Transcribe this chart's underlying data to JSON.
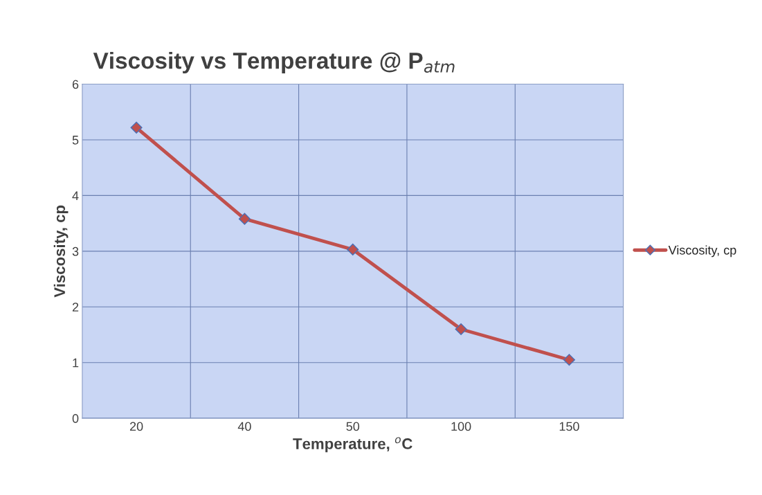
{
  "chart_data": {
    "type": "line",
    "title": "Viscosity vs Temperature @ P$_{atm}$",
    "xlabel": "Temperature, $^{o}$C",
    "ylabel": "Viscosity, cp",
    "categories": [
      "20",
      "40",
      "50",
      "100",
      "150"
    ],
    "series": [
      {
        "name": "Viscosity, cp",
        "color": "#c0504d",
        "values": [
          5.22,
          3.58,
          3.03,
          1.6,
          1.05
        ]
      }
    ],
    "ylim": [
      0,
      6
    ],
    "yticks": [
      0,
      1,
      2,
      3,
      4,
      5,
      6
    ],
    "grid": true,
    "legend": "right",
    "marker": "diamond",
    "line_style": "solid"
  }
}
